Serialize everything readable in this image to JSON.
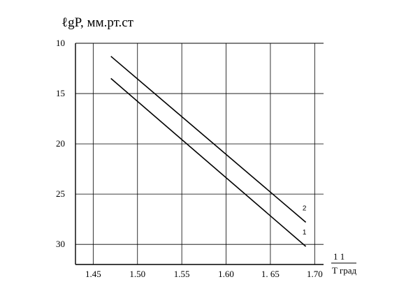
{
  "chart_data": {
    "type": "line",
    "title": "ℓgP,  мм.рт.ст",
    "xlabel_top": "1  1",
    "xlabel_bottom": "T град",
    "x_ticks": [
      "1.45",
      "1.50",
      "1.55",
      "1.60",
      "1. 65",
      "1.70"
    ],
    "x_tick_values": [
      1.45,
      1.5,
      1.55,
      1.6,
      1.65,
      1.7
    ],
    "y_ticks": [
      "10",
      "15",
      "20",
      "25",
      "30"
    ],
    "y_tick_values": [
      10,
      15,
      20,
      25,
      30
    ],
    "xlim": [
      1.43,
      1.71
    ],
    "ylim": [
      10,
      32
    ],
    "y_inverted": true,
    "grid": true,
    "series": [
      {
        "name": "1",
        "x": [
          1.47,
          1.69
        ],
        "y": [
          13.5,
          30.2
        ]
      },
      {
        "name": "2",
        "x": [
          1.47,
          1.69
        ],
        "y": [
          11.3,
          27.8
        ]
      }
    ]
  }
}
